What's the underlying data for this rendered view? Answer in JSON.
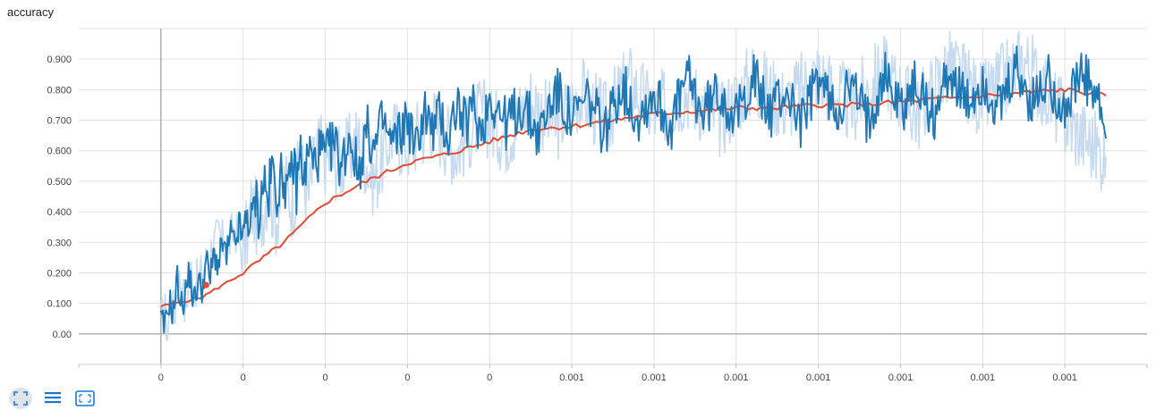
{
  "title": "accuracy",
  "chart_data": {
    "type": "line",
    "title": "accuracy",
    "xlabel": "",
    "ylabel": "",
    "ylim": [
      -0.1,
      1.0
    ],
    "y_ticks": [
      "0.00",
      "0.100",
      "0.200",
      "0.300",
      "0.400",
      "0.500",
      "0.600",
      "0.700",
      "0.800",
      "0.900"
    ],
    "x_ticks": [
      "0",
      "0",
      "0",
      "0",
      "0",
      "0.001",
      "0.001",
      "0.001",
      "0.001",
      "0.001",
      "0.001",
      "0.001"
    ],
    "grid": true,
    "series": [
      {
        "role": "raw",
        "color": "#c6dbef",
        "x": [
          0,
          0.04,
          0.08,
          0.12,
          0.16,
          0.2,
          0.25,
          0.3,
          0.35,
          0.4,
          0.5,
          0.6,
          0.7,
          0.8,
          0.9,
          1.0,
          1.1,
          1.2,
          1.3,
          1.4,
          1.5,
          1.6,
          1.7,
          1.8,
          1.9,
          2.0,
          2.2,
          2.4,
          2.6,
          2.8,
          3.0,
          3.3,
          3.6,
          3.9,
          4.2,
          4.5,
          4.8,
          5.1,
          5.4,
          5.7,
          6.0,
          6.4,
          6.8,
          7.2,
          7.6,
          8.0,
          8.4,
          8.8,
          9.2,
          9.6,
          10.0,
          10.5,
          11.0,
          11.5
        ],
        "y": [
          0.03,
          0.1,
          0.0,
          0.12,
          0.05,
          0.16,
          0.18,
          0.06,
          0.22,
          0.15,
          0.2,
          0.27,
          0.32,
          0.28,
          0.35,
          0.25,
          0.42,
          0.36,
          0.48,
          0.38,
          0.5,
          0.43,
          0.55,
          0.45,
          0.62,
          0.58,
          0.56,
          0.64,
          0.5,
          0.66,
          0.62,
          0.7,
          0.6,
          0.72,
          0.65,
          0.77,
          0.68,
          0.79,
          0.7,
          0.83,
          0.72,
          0.8,
          0.7,
          0.84,
          0.75,
          0.85,
          0.74,
          0.86,
          0.72,
          0.88,
          0.76,
          0.9,
          0.7,
          0.58
        ]
      },
      {
        "role": "smoothed",
        "color": "#e34a33",
        "x": [
          0,
          0.5,
          1.0,
          1.5,
          2.0,
          2.5,
          3.0,
          3.5,
          4.0,
          4.5,
          5.0,
          5.5,
          6.0,
          6.5,
          7.0,
          7.5,
          8.0,
          8.5,
          9.0,
          9.5,
          10.0,
          10.5,
          11.0,
          11.5
        ],
        "y": [
          0.09,
          0.12,
          0.2,
          0.3,
          0.43,
          0.5,
          0.56,
          0.59,
          0.63,
          0.67,
          0.68,
          0.7,
          0.72,
          0.73,
          0.74,
          0.74,
          0.75,
          0.75,
          0.76,
          0.77,
          0.78,
          0.79,
          0.8,
          0.78
        ]
      },
      {
        "role": "detail",
        "color": "#1f77b4",
        "x": [
          0,
          0.05,
          0.1,
          0.15,
          0.2,
          0.25,
          0.3,
          0.35,
          0.4,
          0.45,
          0.5,
          0.55,
          0.6,
          0.65,
          0.7,
          0.75,
          0.8,
          0.85,
          0.9,
          0.95,
          1.0,
          1.05,
          1.1,
          1.15,
          1.2,
          1.25,
          1.3,
          1.35,
          1.4,
          1.45,
          1.5,
          1.55,
          1.6,
          1.65,
          1.7,
          1.75,
          1.8,
          1.85,
          1.9,
          1.95,
          2.0,
          2.1,
          2.2,
          2.3,
          2.4,
          2.5,
          2.6,
          2.7,
          2.8,
          2.9,
          3.0,
          3.1,
          3.2,
          3.3,
          3.4,
          3.5,
          3.6,
          3.7,
          3.8,
          3.9,
          4.0,
          4.2,
          4.4,
          4.6,
          4.8,
          5.0,
          5.2,
          5.4,
          5.6,
          5.8,
          6.0,
          6.2,
          6.4,
          6.6,
          6.8,
          7.0,
          7.2,
          7.4,
          7.6,
          7.8,
          8.0,
          8.2,
          8.4,
          8.6,
          8.8,
          9.0,
          9.2,
          9.4,
          9.6,
          9.8,
          10.0,
          10.2,
          10.4,
          10.6,
          10.8,
          11.0,
          11.2,
          11.4,
          11.5
        ],
        "y": [
          0.04,
          0.02,
          0.11,
          0.07,
          0.18,
          0.09,
          0.14,
          0.2,
          0.1,
          0.17,
          0.15,
          0.24,
          0.18,
          0.27,
          0.22,
          0.3,
          0.25,
          0.33,
          0.28,
          0.36,
          0.3,
          0.4,
          0.35,
          0.45,
          0.38,
          0.52,
          0.42,
          0.55,
          0.46,
          0.5,
          0.52,
          0.44,
          0.58,
          0.48,
          0.6,
          0.5,
          0.62,
          0.55,
          0.58,
          0.6,
          0.57,
          0.63,
          0.55,
          0.66,
          0.52,
          0.67,
          0.6,
          0.7,
          0.62,
          0.65,
          0.71,
          0.6,
          0.74,
          0.66,
          0.72,
          0.64,
          0.76,
          0.68,
          0.74,
          0.66,
          0.78,
          0.69,
          0.75,
          0.65,
          0.8,
          0.7,
          0.77,
          0.66,
          0.82,
          0.71,
          0.79,
          0.68,
          0.84,
          0.72,
          0.8,
          0.7,
          0.85,
          0.72,
          0.8,
          0.69,
          0.84,
          0.73,
          0.81,
          0.7,
          0.86,
          0.74,
          0.82,
          0.71,
          0.87,
          0.74,
          0.83,
          0.72,
          0.86,
          0.75,
          0.84,
          0.73,
          0.85,
          0.76,
          0.64
        ]
      }
    ]
  },
  "toolbar": {
    "buttons": [
      {
        "name": "fit-domain",
        "icon": "expand-icon"
      },
      {
        "name": "toggle-log",
        "icon": "list-icon"
      },
      {
        "name": "reset-view",
        "icon": "selection-icon"
      }
    ]
  }
}
